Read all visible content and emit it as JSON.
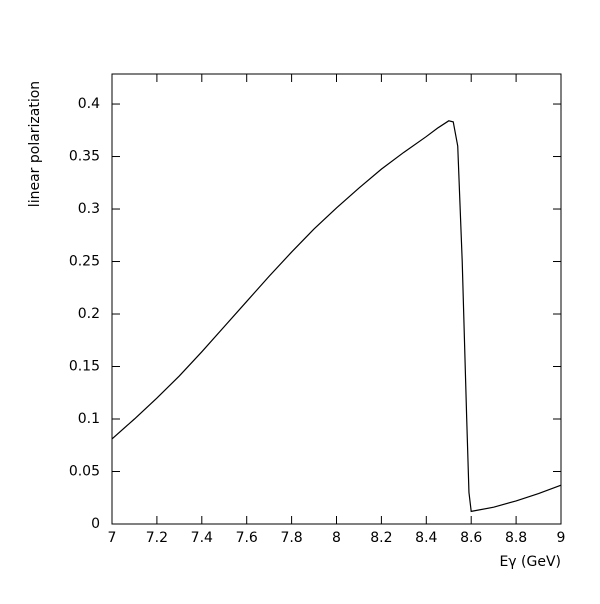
{
  "chart_data": {
    "type": "line",
    "x_label": "Eγ (GeV)",
    "y_label": "linear polarization",
    "x": [
      7.0,
      7.1,
      7.2,
      7.3,
      7.4,
      7.5,
      7.6,
      7.7,
      7.8,
      7.9,
      8.0,
      8.1,
      8.2,
      8.3,
      8.4,
      8.45,
      8.5,
      8.52,
      8.54,
      8.56,
      8.58,
      8.59,
      8.6,
      8.7,
      8.8,
      8.9,
      9.0
    ],
    "series": [
      {
        "color": "#000000",
        "values": [
          0.081,
          0.1,
          0.12,
          0.141,
          0.164,
          0.188,
          0.212,
          0.236,
          0.259,
          0.281,
          0.301,
          0.32,
          0.338,
          0.354,
          0.369,
          0.377,
          0.384,
          0.383,
          0.36,
          0.25,
          0.1,
          0.03,
          0.012,
          0.016,
          0.022,
          0.029,
          0.037
        ]
      }
    ],
    "xlim": [
      7,
      9
    ],
    "ylim": [
      0,
      0.4286
    ],
    "xticks": [
      7,
      7.2,
      7.4,
      7.6,
      7.8,
      8,
      8.2,
      8.4,
      8.6,
      8.8,
      9
    ],
    "yticks": [
      0,
      0.05,
      0.1,
      0.15,
      0.2,
      0.25,
      0.3,
      0.35,
      0.4
    ]
  }
}
